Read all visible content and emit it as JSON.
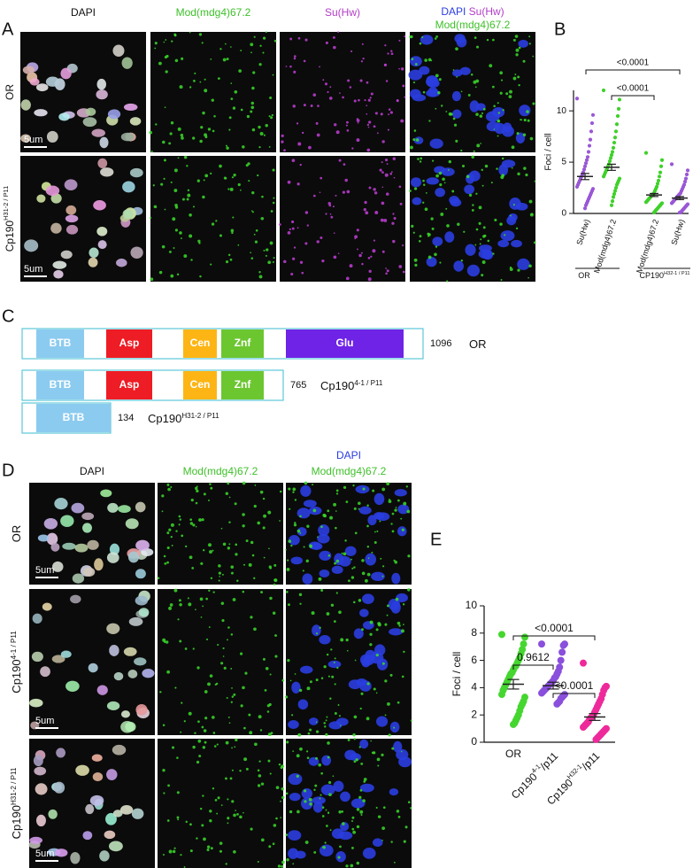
{
  "panel_a": {
    "label": "A",
    "columns": [
      "DAPI",
      "Mod(mdg4)67.2",
      "Su(Hw)"
    ],
    "merge_header": [
      "DAPI",
      "Su(Hw)",
      "Mod(mdg4)67.2"
    ],
    "rows": [
      {
        "name": "OR"
      },
      {
        "name": "Cp190",
        "sup": "H31-2 / P11"
      }
    ],
    "scale_bar": "5um"
  },
  "panel_b": {
    "label": "B",
    "type": "scatter",
    "ylabel": "Foci / cell",
    "ylim": [
      0,
      12
    ],
    "yticks": [
      0,
      5,
      10
    ],
    "categories": [
      "Su(Hw)",
      "Mod(mdg4)67.2",
      "Mod(mdg4)67.2",
      "Su(Hw)"
    ],
    "groups": [
      {
        "name": "OR"
      },
      {
        "name": "CP190",
        "sup": "H32-1 / P11"
      }
    ],
    "series": [
      {
        "color": "#9a57d6",
        "mean": 3.6,
        "sem": 0.3,
        "values": [
          11.2,
          9.6,
          8.8,
          8.0,
          7.2,
          6.6,
          6.0,
          5.5,
          5.2,
          4.9,
          4.6,
          4.3,
          4.0,
          3.8,
          3.6,
          3.4,
          3.2,
          3.0,
          2.8,
          2.6,
          2.4,
          2.2,
          2.0,
          1.8,
          1.6,
          1.4,
          1.2,
          1.0,
          0.8,
          0.5
        ]
      },
      {
        "color": "#3fd12a",
        "mean": 4.5,
        "sem": 0.3,
        "values": [
          12.0,
          11.1,
          10.2,
          9.5,
          8.7,
          8.0,
          7.4,
          6.9,
          6.4,
          6.0,
          5.7,
          5.4,
          5.1,
          4.8,
          4.6,
          4.4,
          4.2,
          4.0,
          3.8,
          3.6,
          3.4,
          3.2,
          3.0,
          2.8,
          2.5,
          2.2,
          1.9,
          1.6,
          1.2,
          0.8
        ]
      },
      {
        "color": "#3fd12a",
        "mean": 1.8,
        "sem": 0.15,
        "values": [
          5.9,
          5.2,
          4.6,
          4.0,
          3.6,
          3.2,
          2.9,
          2.6,
          2.4,
          2.2,
          2.0,
          1.9,
          1.8,
          1.7,
          1.6,
          1.5,
          1.4,
          1.3,
          1.2,
          1.1,
          1.0,
          0.9,
          0.8,
          0.7,
          0.6,
          0.5,
          0.4,
          0.3,
          0.2,
          0.1
        ]
      },
      {
        "color": "#9a57d6",
        "mean": 1.5,
        "sem": 0.15,
        "values": [
          4.8,
          4.2,
          3.8,
          3.4,
          3.1,
          2.8,
          2.6,
          2.4,
          2.2,
          2.0,
          1.9,
          1.8,
          1.7,
          1.6,
          1.5,
          1.4,
          1.3,
          1.2,
          1.1,
          1.0,
          0.9,
          0.8,
          0.7,
          0.6,
          0.5,
          0.4,
          0.3,
          0.2,
          0.1,
          0.1
        ]
      }
    ],
    "comparisons": [
      "<0.0001",
      "<0.0001"
    ]
  },
  "panel_c": {
    "label": "C",
    "proteins": [
      {
        "domains": [
          "BTB",
          "Asp",
          "Cen",
          "Znf",
          "Glu"
        ],
        "length": 1096,
        "name": "OR"
      },
      {
        "domains": [
          "BTB",
          "Asp",
          "Cen",
          "Znf"
        ],
        "length": 765,
        "name": "Cp190",
        "sup": "4-1 / P11"
      },
      {
        "domains": [
          "BTB"
        ],
        "length": 134,
        "name": "Cp190",
        "sup": "H31-2 / P11"
      }
    ]
  },
  "panel_d": {
    "label": "D",
    "columns": [
      "DAPI",
      "Mod(mdg4)67.2"
    ],
    "merge_header": [
      "DAPI",
      "Mod(mdg4)67.2"
    ],
    "rows": [
      {
        "name": "OR"
      },
      {
        "name": "Cp190",
        "sup": "4-1 / P11"
      },
      {
        "name": "Cp190",
        "sup": "H31-2 / P11"
      }
    ],
    "scale_bar": "5um"
  },
  "panel_e": {
    "label": "E",
    "type": "scatter",
    "ylabel": "Foci / cell",
    "ylim": [
      0,
      10
    ],
    "yticks": [
      0,
      2,
      4,
      6,
      8,
      10
    ],
    "categories": [
      {
        "name": "OR"
      },
      {
        "name": "Cp190",
        "sup": "4-1",
        "suffix": "/p11"
      },
      {
        "name": "Cp190",
        "sup": "H32-1",
        "suffix": "/p11"
      }
    ],
    "series": [
      {
        "color": "#45d630",
        "mean": 4.25,
        "sem": 0.35,
        "values": [
          7.9,
          7.7,
          7.2,
          6.8,
          6.5,
          6.2,
          6.0,
          5.8,
          5.6,
          5.5,
          5.3,
          5.1,
          5.0,
          4.8,
          4.6,
          4.4,
          4.2,
          4.0,
          3.8,
          3.5,
          3.3,
          3.0,
          2.8,
          2.6,
          2.3,
          2.0,
          1.8,
          1.6,
          1.4,
          1.3
        ]
      },
      {
        "color": "#8a4fdc",
        "mean": 4.15,
        "sem": 0.25,
        "values": [
          7.2,
          7.2,
          7.1,
          6.6,
          6.0,
          5.5,
          5.2,
          5.0,
          4.8,
          4.7,
          4.5,
          4.4,
          4.3,
          4.2,
          4.1,
          4.0,
          3.9,
          3.8,
          3.7,
          3.6,
          3.5,
          3.4,
          3.3,
          3.2,
          3.0,
          2.9,
          2.8
        ]
      },
      {
        "color": "#ee2a9b",
        "mean": 1.85,
        "sem": 0.25,
        "values": [
          5.8,
          4.1,
          4.0,
          3.8,
          3.5,
          3.2,
          3.0,
          2.8,
          2.6,
          2.4,
          2.2,
          2.0,
          1.9,
          1.8,
          1.7,
          1.5,
          1.4,
          1.3,
          1.2,
          1.1,
          1.0,
          0.9,
          0.8,
          0.7,
          0.6,
          0.5,
          0.4,
          0.3,
          0.2
        ]
      }
    ],
    "comparisons": [
      "<0.0001",
      "0.9612",
      "<0.0001"
    ]
  }
}
